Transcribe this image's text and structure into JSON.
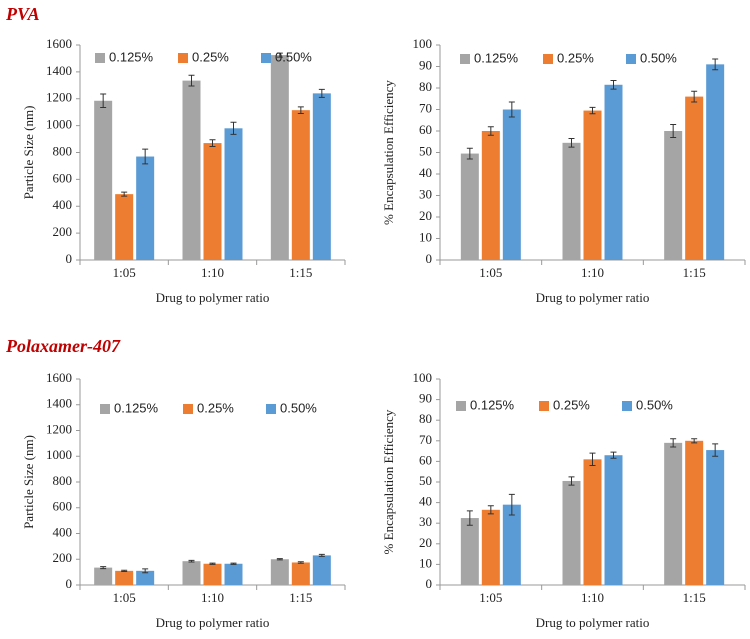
{
  "headings": [
    "PVA",
    "Polaxamer-407"
  ],
  "chart_data": [
    {
      "type": "bar",
      "x_label": "Drug to polymer ratio",
      "y_label": "Particle Size (nm)",
      "categories": [
        "1:05",
        "1:10",
        "1:15"
      ],
      "series": [
        {
          "name": "0.125%",
          "color": "#a5a5a5",
          "values": [
            1185,
            1335,
            1525
          ],
          "errors": [
            50,
            40,
            15
          ]
        },
        {
          "name": "0.25%",
          "color": "#ed7d31",
          "values": [
            490,
            870,
            1115
          ],
          "errors": [
            15,
            25,
            25
          ]
        },
        {
          "name": "0.50%",
          "color": "#5b9bd5",
          "values": [
            770,
            980,
            1240
          ],
          "errors": [
            55,
            45,
            30
          ]
        }
      ],
      "ylim": [
        0,
        1600
      ],
      "yticks": [
        0,
        200,
        400,
        600,
        800,
        1000,
        1200,
        1400,
        1600
      ],
      "grid": false,
      "legend": "top-left"
    },
    {
      "type": "bar",
      "x_label": "Drug to polymer ratio",
      "y_label": "% Encapsulation  Efficiency",
      "categories": [
        "1:05",
        "1:10",
        "1:15"
      ],
      "series": [
        {
          "name": "0.125%",
          "color": "#a5a5a5",
          "values": [
            49.5,
            54.5,
            60
          ],
          "errors": [
            2.5,
            2,
            3
          ]
        },
        {
          "name": "0.25%",
          "color": "#ed7d31",
          "values": [
            60,
            69.5,
            76
          ],
          "errors": [
            2,
            1.5,
            2.5
          ]
        },
        {
          "name": "0.50%",
          "color": "#5b9bd5",
          "values": [
            70,
            81.5,
            91
          ],
          "errors": [
            3.5,
            2,
            2.5
          ]
        }
      ],
      "ylim": [
        0,
        100
      ],
      "yticks": [
        0,
        10,
        20,
        30,
        40,
        50,
        60,
        70,
        80,
        90,
        100
      ],
      "grid": false,
      "legend": "top-left"
    },
    {
      "type": "bar",
      "x_label": "Drug to polymer ratio",
      "y_label": "Particle Size (nm)",
      "categories": [
        "1:05",
        "1:10",
        "1:15"
      ],
      "series": [
        {
          "name": "0.125%",
          "color": "#a5a5a5",
          "values": [
            135,
            185,
            200
          ],
          "errors": [
            8,
            6,
            5
          ]
        },
        {
          "name": "0.25%",
          "color": "#ed7d31",
          "values": [
            110,
            165,
            175
          ],
          "errors": [
            5,
            5,
            6
          ]
        },
        {
          "name": "0.50%",
          "color": "#5b9bd5",
          "values": [
            110,
            165,
            230
          ],
          "errors": [
            15,
            5,
            8
          ]
        }
      ],
      "ylim": [
        0,
        1600
      ],
      "yticks": [
        0,
        200,
        400,
        600,
        800,
        1000,
        1200,
        1400,
        1600
      ],
      "grid": false,
      "legend": "top-left"
    },
    {
      "type": "bar",
      "x_label": "Drug to polymer ratio",
      "y_label": "% Encapsulation  Efficiency",
      "categories": [
        "1:05",
        "1:10",
        "1:15"
      ],
      "series": [
        {
          "name": "0.125%",
          "color": "#a5a5a5",
          "values": [
            32.5,
            50.5,
            69
          ],
          "errors": [
            3.5,
            2,
            2
          ]
        },
        {
          "name": "0.25%",
          "color": "#ed7d31",
          "values": [
            36.5,
            61,
            70
          ],
          "errors": [
            2,
            3,
            1
          ]
        },
        {
          "name": "0.50%",
          "color": "#5b9bd5",
          "values": [
            39,
            63,
            65.5
          ],
          "errors": [
            5,
            1.5,
            3
          ]
        }
      ],
      "ylim": [
        0,
        100
      ],
      "yticks": [
        0,
        10,
        20,
        30,
        40,
        50,
        60,
        70,
        80,
        90,
        100
      ],
      "grid": false,
      "legend": "top-left"
    }
  ]
}
